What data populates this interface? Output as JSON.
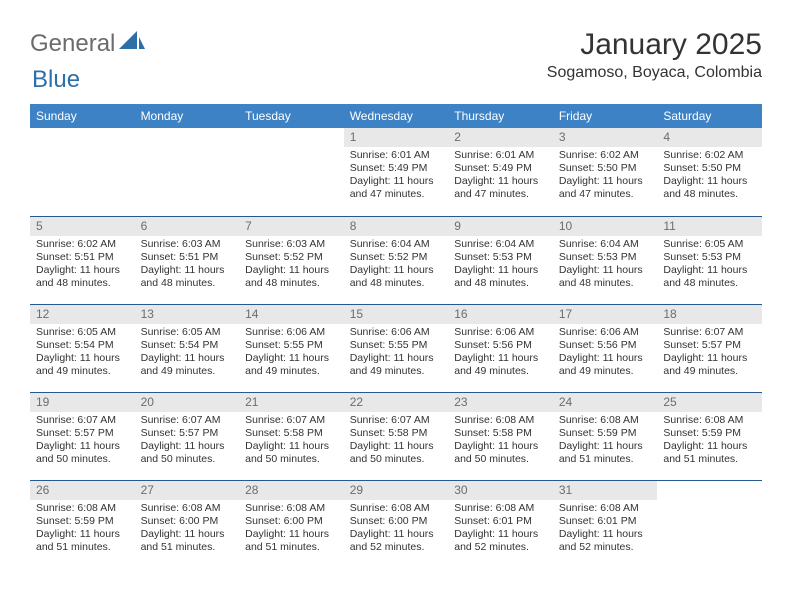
{
  "logo": {
    "general": "General",
    "blue": "Blue"
  },
  "title": "January 2025",
  "location": "Sogamoso, Boyaca, Colombia",
  "colors": {
    "header_bg": "#3c82c4",
    "header_text": "#ffffff",
    "rule": "#245a8f",
    "daynum_bg": "#e8e8e8",
    "daynum_text": "#6d6d6d",
    "body_text": "#333333",
    "logo_gray": "#6b6b6b",
    "logo_blue": "#2f6fa8"
  },
  "day_headers": [
    "Sunday",
    "Monday",
    "Tuesday",
    "Wednesday",
    "Thursday",
    "Friday",
    "Saturday"
  ],
  "weeks": [
    [
      {
        "n": "",
        "empty": true,
        "sr": "",
        "ss": "",
        "dl": ""
      },
      {
        "n": "",
        "empty": true,
        "sr": "",
        "ss": "",
        "dl": ""
      },
      {
        "n": "",
        "empty": true,
        "sr": "",
        "ss": "",
        "dl": ""
      },
      {
        "n": "1",
        "sr": "Sunrise: 6:01 AM",
        "ss": "Sunset: 5:49 PM",
        "dl": "Daylight: 11 hours and 47 minutes."
      },
      {
        "n": "2",
        "sr": "Sunrise: 6:01 AM",
        "ss": "Sunset: 5:49 PM",
        "dl": "Daylight: 11 hours and 47 minutes."
      },
      {
        "n": "3",
        "sr": "Sunrise: 6:02 AM",
        "ss": "Sunset: 5:50 PM",
        "dl": "Daylight: 11 hours and 47 minutes."
      },
      {
        "n": "4",
        "sr": "Sunrise: 6:02 AM",
        "ss": "Sunset: 5:50 PM",
        "dl": "Daylight: 11 hours and 48 minutes."
      }
    ],
    [
      {
        "n": "5",
        "sr": "Sunrise: 6:02 AM",
        "ss": "Sunset: 5:51 PM",
        "dl": "Daylight: 11 hours and 48 minutes."
      },
      {
        "n": "6",
        "sr": "Sunrise: 6:03 AM",
        "ss": "Sunset: 5:51 PM",
        "dl": "Daylight: 11 hours and 48 minutes."
      },
      {
        "n": "7",
        "sr": "Sunrise: 6:03 AM",
        "ss": "Sunset: 5:52 PM",
        "dl": "Daylight: 11 hours and 48 minutes."
      },
      {
        "n": "8",
        "sr": "Sunrise: 6:04 AM",
        "ss": "Sunset: 5:52 PM",
        "dl": "Daylight: 11 hours and 48 minutes."
      },
      {
        "n": "9",
        "sr": "Sunrise: 6:04 AM",
        "ss": "Sunset: 5:53 PM",
        "dl": "Daylight: 11 hours and 48 minutes."
      },
      {
        "n": "10",
        "sr": "Sunrise: 6:04 AM",
        "ss": "Sunset: 5:53 PM",
        "dl": "Daylight: 11 hours and 48 minutes."
      },
      {
        "n": "11",
        "sr": "Sunrise: 6:05 AM",
        "ss": "Sunset: 5:53 PM",
        "dl": "Daylight: 11 hours and 48 minutes."
      }
    ],
    [
      {
        "n": "12",
        "sr": "Sunrise: 6:05 AM",
        "ss": "Sunset: 5:54 PM",
        "dl": "Daylight: 11 hours and 49 minutes."
      },
      {
        "n": "13",
        "sr": "Sunrise: 6:05 AM",
        "ss": "Sunset: 5:54 PM",
        "dl": "Daylight: 11 hours and 49 minutes."
      },
      {
        "n": "14",
        "sr": "Sunrise: 6:06 AM",
        "ss": "Sunset: 5:55 PM",
        "dl": "Daylight: 11 hours and 49 minutes."
      },
      {
        "n": "15",
        "sr": "Sunrise: 6:06 AM",
        "ss": "Sunset: 5:55 PM",
        "dl": "Daylight: 11 hours and 49 minutes."
      },
      {
        "n": "16",
        "sr": "Sunrise: 6:06 AM",
        "ss": "Sunset: 5:56 PM",
        "dl": "Daylight: 11 hours and 49 minutes."
      },
      {
        "n": "17",
        "sr": "Sunrise: 6:06 AM",
        "ss": "Sunset: 5:56 PM",
        "dl": "Daylight: 11 hours and 49 minutes."
      },
      {
        "n": "18",
        "sr": "Sunrise: 6:07 AM",
        "ss": "Sunset: 5:57 PM",
        "dl": "Daylight: 11 hours and 49 minutes."
      }
    ],
    [
      {
        "n": "19",
        "sr": "Sunrise: 6:07 AM",
        "ss": "Sunset: 5:57 PM",
        "dl": "Daylight: 11 hours and 50 minutes."
      },
      {
        "n": "20",
        "sr": "Sunrise: 6:07 AM",
        "ss": "Sunset: 5:57 PM",
        "dl": "Daylight: 11 hours and 50 minutes."
      },
      {
        "n": "21",
        "sr": "Sunrise: 6:07 AM",
        "ss": "Sunset: 5:58 PM",
        "dl": "Daylight: 11 hours and 50 minutes."
      },
      {
        "n": "22",
        "sr": "Sunrise: 6:07 AM",
        "ss": "Sunset: 5:58 PM",
        "dl": "Daylight: 11 hours and 50 minutes."
      },
      {
        "n": "23",
        "sr": "Sunrise: 6:08 AM",
        "ss": "Sunset: 5:58 PM",
        "dl": "Daylight: 11 hours and 50 minutes."
      },
      {
        "n": "24",
        "sr": "Sunrise: 6:08 AM",
        "ss": "Sunset: 5:59 PM",
        "dl": "Daylight: 11 hours and 51 minutes."
      },
      {
        "n": "25",
        "sr": "Sunrise: 6:08 AM",
        "ss": "Sunset: 5:59 PM",
        "dl": "Daylight: 11 hours and 51 minutes."
      }
    ],
    [
      {
        "n": "26",
        "sr": "Sunrise: 6:08 AM",
        "ss": "Sunset: 5:59 PM",
        "dl": "Daylight: 11 hours and 51 minutes."
      },
      {
        "n": "27",
        "sr": "Sunrise: 6:08 AM",
        "ss": "Sunset: 6:00 PM",
        "dl": "Daylight: 11 hours and 51 minutes."
      },
      {
        "n": "28",
        "sr": "Sunrise: 6:08 AM",
        "ss": "Sunset: 6:00 PM",
        "dl": "Daylight: 11 hours and 51 minutes."
      },
      {
        "n": "29",
        "sr": "Sunrise: 6:08 AM",
        "ss": "Sunset: 6:00 PM",
        "dl": "Daylight: 11 hours and 52 minutes."
      },
      {
        "n": "30",
        "sr": "Sunrise: 6:08 AM",
        "ss": "Sunset: 6:01 PM",
        "dl": "Daylight: 11 hours and 52 minutes."
      },
      {
        "n": "31",
        "sr": "Sunrise: 6:08 AM",
        "ss": "Sunset: 6:01 PM",
        "dl": "Daylight: 11 hours and 52 minutes."
      },
      {
        "n": "",
        "empty": true,
        "sr": "",
        "ss": "",
        "dl": ""
      }
    ]
  ]
}
